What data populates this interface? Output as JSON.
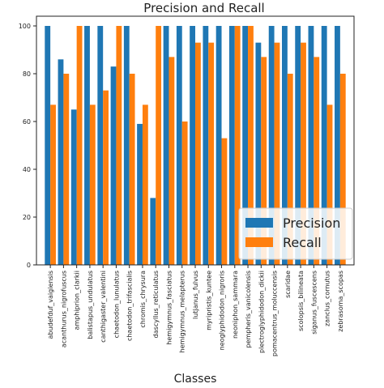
{
  "chart_data": {
    "type": "bar",
    "title": "Precision and Recall",
    "xlabel": "Classes",
    "ylabel": "",
    "ylim": [
      0,
      100
    ],
    "yticks": [
      0,
      20,
      40,
      60,
      80,
      100
    ],
    "grid": false,
    "legend_position": "lower-right",
    "categories": [
      "abudefduf_vaigiensis",
      "acanthurus_nigrofuscus",
      "amphiprion_clarkii",
      "balistapus_undulatus",
      "canthigaster_valentini",
      "chaetodon_lunulatus",
      "chaetodon_trifascialis",
      "chromis_chrysura",
      "dascyllus_reticulatus",
      "hemigymnus_fasciatus",
      "hemigymnus_melapterus",
      "lutjanus_fulvus",
      "myripristis_kuntee",
      "neoglyphidodon_nigroris",
      "neoniphon_sammara",
      "pempheris_vanicolensis",
      "plectroglyphidodon_dickii",
      "pomacentrus_moluccensis",
      "scaridae",
      "scolopsis_bilineata",
      "siganus_fuscescens",
      "zanclus_cornutus",
      "zebrasoma_scopas"
    ],
    "series": [
      {
        "name": "Precision",
        "color": "#1f77b4",
        "values": [
          100,
          86,
          65,
          100,
          100,
          83,
          100,
          59,
          28,
          100,
          100,
          100,
          100,
          100,
          100,
          100,
          93,
          100,
          100,
          100,
          100,
          100,
          100
        ]
      },
      {
        "name": "Recall",
        "color": "#ff7f0e",
        "values": [
          67,
          80,
          100,
          67,
          73,
          100,
          80,
          67,
          100,
          87,
          60,
          93,
          93,
          53,
          100,
          100,
          87,
          93,
          80,
          93,
          87,
          67,
          80
        ]
      }
    ]
  }
}
